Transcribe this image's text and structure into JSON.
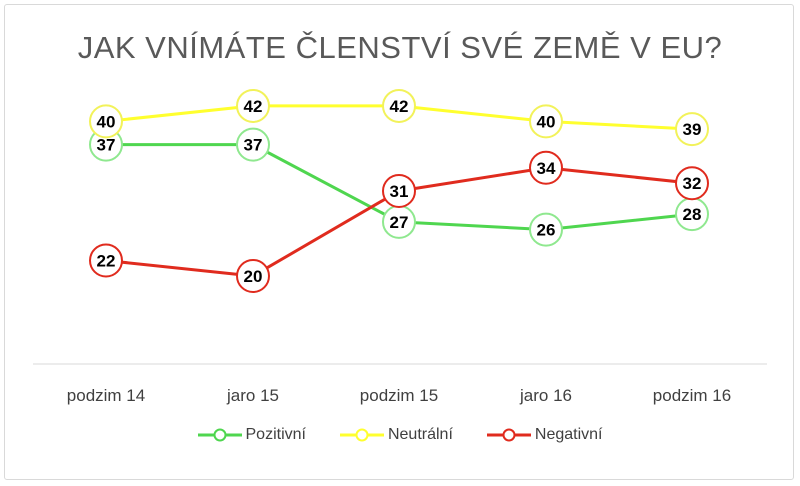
{
  "chart_data": {
    "type": "line",
    "title": "JAK VNÍMÁTE ČLENSTVÍ SVÉ ZEMĚ V EU?",
    "categories": [
      "podzim 14",
      "jaro 15",
      "podzim 15",
      "jaro 16",
      "podzim 16"
    ],
    "series": [
      {
        "name": "Pozitivní",
        "values": [
          37,
          37,
          27,
          26,
          28
        ],
        "color": "#4fd64f",
        "marker_border": "#8fe88f"
      },
      {
        "name": "Neutrální",
        "values": [
          40,
          42,
          42,
          40,
          39
        ],
        "color": "#ffff2e",
        "marker_border": "#f2f25a"
      },
      {
        "name": "Negativní",
        "values": [
          22,
          20,
          31,
          34,
          32
        ],
        "color": "#e02b1e",
        "marker_border": "#e02b1e"
      }
    ],
    "data_labels": true,
    "axis_line_color": "#d9d9d9",
    "legend_position": "bottom"
  }
}
